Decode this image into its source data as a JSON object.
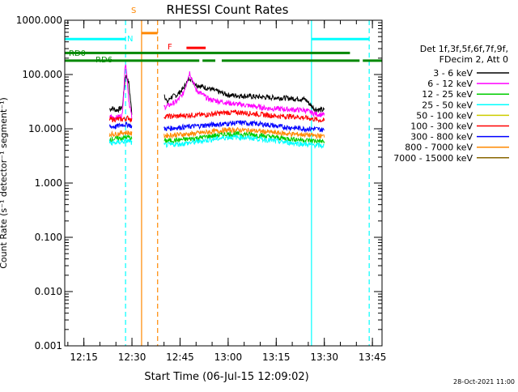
{
  "chart_data": {
    "type": "line",
    "title": "RHESSI Count Rates",
    "xlabel": "Start Time (06-Jul-15 12:09:02)",
    "ylabel": "Count Rate (s⁻¹ detector⁻¹ segment⁻¹)",
    "x_range": [
      "12:09:02",
      "13:48:00"
    ],
    "ylim": [
      0.001,
      1000
    ],
    "y_scale": "log",
    "x_ticks": [
      "12:15",
      "12:30",
      "12:45",
      "13:00",
      "13:15",
      "13:30",
      "13:45"
    ],
    "y_ticks": [
      "0.001",
      "0.010",
      "0.100",
      "1.000",
      "10.000",
      "100.000",
      "1000.000"
    ],
    "legend": {
      "placement": "right",
      "header": [
        "Det 1f,3f,5f,6f,7f,9f,",
        "FDecim 2, Att 0"
      ],
      "entries": [
        {
          "label": "3 - 6 keV",
          "color": "#000000"
        },
        {
          "label": "6 - 12 keV",
          "color": "#ff00ff"
        },
        {
          "label": "12 - 25 keV",
          "color": "#00cc00"
        },
        {
          "label": "25 - 50 keV",
          "color": "#00ffff"
        },
        {
          "label": "50 - 100 keV",
          "color": "#cccc00"
        },
        {
          "label": "100 - 300 keV",
          "color": "#ff0000"
        },
        {
          "label": "300 - 800 keV",
          "color": "#0000ff"
        },
        {
          "label": "800 - 7000 keV",
          "color": "#ff8800"
        },
        {
          "label": "7000 - 15000 keV",
          "color": "#886600"
        }
      ]
    },
    "series": [
      {
        "name": "3 - 6 keV",
        "color": "#000000",
        "segments": [
          {
            "x": [
              "12:23",
              "12:24",
              "12:25",
              "12:26",
              "12:27",
              "12:28",
              "12:29",
              "12:30"
            ],
            "y": [
              23,
              24,
              22,
              23,
              25,
              100,
              70,
              18
            ]
          },
          {
            "x": [
              "12:40",
              "12:41",
              "12:42",
              "12:44",
              "12:46",
              "12:48",
              "12:50",
              "12:54",
              "13:00",
              "13:06",
              "13:12",
              "13:18",
              "13:24",
              "13:27",
              "13:30"
            ],
            "y": [
              45,
              30,
              38,
              42,
              55,
              88,
              65,
              55,
              42,
              40,
              38,
              37,
              35,
              23,
              22
            ]
          }
        ]
      },
      {
        "name": "6 - 12 keV",
        "color": "#ff00ff",
        "segments": [
          {
            "x": [
              "12:23",
              "12:25",
              "12:27",
              "12:28",
              "12:29",
              "12:30"
            ],
            "y": [
              17,
              16,
              18,
              190,
              35,
              15
            ]
          },
          {
            "x": [
              "12:40",
              "12:42",
              "12:44",
              "12:46",
              "12:48",
              "12:50",
              "12:54",
              "13:00",
              "13:06",
              "13:12",
              "13:18",
              "13:24",
              "13:27",
              "13:30"
            ],
            "y": [
              25,
              28,
              32,
              45,
              110,
              52,
              35,
              30,
              27,
              24,
              23,
              22,
              19,
              18
            ]
          }
        ]
      },
      {
        "name": "100 - 300 keV",
        "color": "#ff0000",
        "segments": [
          {
            "x": [
              "12:23",
              "12:25",
              "12:27",
              "12:29",
              "12:30"
            ],
            "y": [
              15,
              15,
              15,
              16,
              14
            ]
          },
          {
            "x": [
              "12:40",
              "12:44",
              "12:48",
              "12:52",
              "12:56",
              "13:00",
              "13:04",
              "13:08",
              "13:12",
              "13:16",
              "13:20",
              "13:24",
              "13:27",
              "13:30"
            ],
            "y": [
              17,
              17,
              18,
              18,
              19,
              20,
              20,
              19,
              18,
              17,
              17,
              16,
              15,
              14
            ]
          }
        ]
      },
      {
        "name": "300 - 800 keV",
        "color": "#0000ff",
        "segments": [
          {
            "x": [
              "12:23",
              "12:25",
              "12:27",
              "12:29",
              "12:30"
            ],
            "y": [
              11,
              11,
              12,
              12,
              11
            ]
          },
          {
            "x": [
              "12:40",
              "12:44",
              "12:48",
              "12:52",
              "12:56",
              "13:00",
              "13:04",
              "13:08",
              "13:12",
              "13:16",
              "13:20",
              "13:24",
              "13:27",
              "13:30"
            ],
            "y": [
              10,
              10.5,
              11,
              11.5,
              12,
              12.5,
              13,
              12.5,
              12,
              11,
              10.5,
              10,
              10,
              9.5
            ]
          }
        ]
      },
      {
        "name": "800 - 7000 keV",
        "color": "#ff8800",
        "segments": [
          {
            "x": [
              "12:23",
              "12:25",
              "12:27",
              "12:29",
              "12:30"
            ],
            "y": [
              8,
              8,
              8.5,
              8.5,
              8
            ]
          },
          {
            "x": [
              "12:40",
              "12:44",
              "12:48",
              "12:52",
              "12:56",
              "13:00",
              "13:04",
              "13:08",
              "13:12",
              "13:16",
              "13:20",
              "13:24",
              "13:27",
              "13:30"
            ],
            "y": [
              7.5,
              7.8,
              8,
              8.5,
              9,
              9.5,
              9.5,
              9.2,
              8.8,
              8.3,
              8,
              7.8,
              7.5,
              7.3
            ]
          }
        ]
      },
      {
        "name": "12 - 25 keV",
        "color": "#00cc00",
        "segments": [
          {
            "x": [
              "12:23",
              "12:25",
              "12:27",
              "12:29",
              "12:30"
            ],
            "y": [
              6.5,
              6.5,
              6.8,
              7,
              6.5
            ]
          },
          {
            "x": [
              "12:40",
              "12:44",
              "12:48",
              "12:52",
              "12:56",
              "13:00",
              "13:04",
              "13:08",
              "13:12",
              "13:16",
              "13:20",
              "13:24",
              "13:27",
              "13:30"
            ],
            "y": [
              6,
              6.2,
              6.5,
              7,
              7.5,
              8,
              8,
              7.8,
              7.3,
              6.8,
              6.5,
              6.2,
              6,
              5.8
            ]
          }
        ]
      },
      {
        "name": "25 - 50 keV",
        "color": "#00ffff",
        "segments": [
          {
            "x": [
              "12:23",
              "12:25",
              "12:27",
              "12:29",
              "12:30"
            ],
            "y": [
              5.5,
              5.5,
              5.8,
              6,
              5.5
            ]
          },
          {
            "x": [
              "12:40",
              "12:44",
              "12:48",
              "12:52",
              "12:56",
              "13:00",
              "13:04",
              "13:08",
              "13:12",
              "13:16",
              "13:20",
              "13:24",
              "13:27",
              "13:30"
            ],
            "y": [
              5,
              5.2,
              5.5,
              6,
              6.5,
              7,
              7,
              6.7,
              6.3,
              5.8,
              5.5,
              5.2,
              5,
              4.8
            ]
          }
        ]
      }
    ],
    "flag_bars": [
      {
        "label": "",
        "color": "#00ffff",
        "segments": [
          [
            "12:09:02",
            "12:28"
          ],
          [
            "13:26",
            "13:44"
          ]
        ],
        "level": 450
      },
      {
        "label": "S",
        "color": "#ff8800",
        "segments": [
          [
            "12:33",
            "12:38"
          ]
        ],
        "level": 580
      },
      {
        "label": "N",
        "color": "#00ffff",
        "segments": [],
        "level": 430
      },
      {
        "label": "F",
        "color": "#ff0000",
        "segments": [
          [
            "12:47",
            "12:53"
          ]
        ],
        "level": 310
      },
      {
        "label": "RD0",
        "color": "#008800",
        "segments": [
          [
            "12:09:02",
            "13:38"
          ]
        ],
        "level": 250
      },
      {
        "label": "RD6",
        "color": "#008800",
        "segments": [
          [
            "12:09:02",
            "12:51"
          ],
          [
            "12:52",
            "12:56"
          ],
          [
            "12:58",
            "13:41"
          ],
          [
            "13:42",
            "13:48"
          ]
        ],
        "level": 180
      }
    ],
    "vertical_lines": [
      {
        "x": "12:28",
        "color": "#00ffff",
        "dashed": true
      },
      {
        "x": "12:33",
        "color": "#ff8800",
        "dashed": false
      },
      {
        "x": "12:38",
        "color": "#ff8800",
        "dashed": true
      },
      {
        "x": "13:26",
        "color": "#00ffff",
        "dashed": false
      },
      {
        "x": "13:44",
        "color": "#00ffff",
        "dashed": true
      }
    ],
    "timestamp": "28-Oct-2021 11:00"
  }
}
